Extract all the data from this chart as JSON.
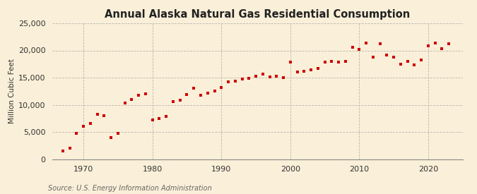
{
  "title": "Annual Alaska Natural Gas Residential Consumption",
  "ylabel": "Million Cubic Feet",
  "source": "Source: U.S. Energy Information Administration",
  "background_color": "#faefd8",
  "plot_bg_color": "#faefd8",
  "marker_color": "#cc0000",
  "grid_color": "#aaaaaa",
  "years": [
    1967,
    1968,
    1969,
    1970,
    1971,
    1972,
    1973,
    1974,
    1975,
    1976,
    1977,
    1978,
    1979,
    1980,
    1981,
    1982,
    1983,
    1984,
    1985,
    1986,
    1987,
    1988,
    1989,
    1990,
    1991,
    1992,
    1993,
    1994,
    1995,
    1996,
    1997,
    1998,
    1999,
    2000,
    2001,
    2002,
    2003,
    2004,
    2005,
    2006,
    2007,
    2008,
    2009,
    2010,
    2011,
    2012,
    2013,
    2014,
    2015,
    2016,
    2017,
    2018,
    2019,
    2020,
    2021,
    2022,
    2023
  ],
  "values": [
    1500,
    2000,
    4700,
    6100,
    6600,
    8300,
    8000,
    3900,
    4800,
    10300,
    11000,
    11800,
    12000,
    7200,
    7500,
    7900,
    10600,
    10900,
    11900,
    13000,
    11800,
    12200,
    12500,
    13200,
    14200,
    14300,
    14700,
    14900,
    15200,
    15600,
    15100,
    15300,
    15000,
    17800,
    16000,
    16200,
    16400,
    16700,
    17900,
    18000,
    17800,
    18000,
    20600,
    20200,
    21300,
    18800,
    21200,
    19200,
    18800,
    17500,
    18000,
    17400,
    18200,
    20900,
    21300,
    20300,
    21200
  ],
  "xlim": [
    1965.5,
    2025
  ],
  "ylim": [
    0,
    25000
  ],
  "yticks": [
    0,
    5000,
    10000,
    15000,
    20000,
    25000
  ],
  "xticks": [
    1970,
    1980,
    1990,
    2000,
    2010,
    2020
  ],
  "title_fontsize": 10.5,
  "label_fontsize": 7.5,
  "tick_fontsize": 8,
  "source_fontsize": 7
}
